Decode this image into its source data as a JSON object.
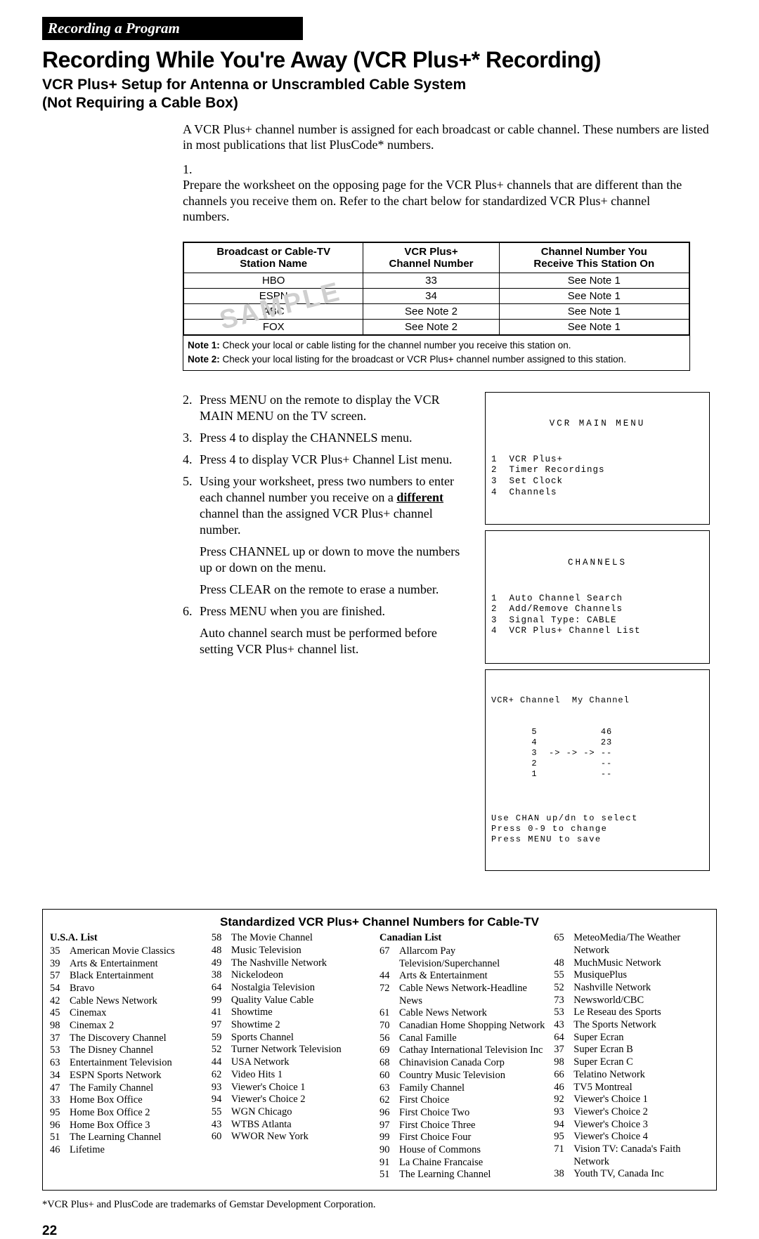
{
  "header_bar": "Recording a Program",
  "main_title": "Recording While You're Away (VCR Plus+* Recording)",
  "sub_title_line1": "VCR Plus+ Setup for Antenna or Unscrambled Cable System",
  "sub_title_line2": "(Not Requiring a Cable Box)",
  "intro_para": "A VCR Plus+ channel number is assigned for each broadcast or cable channel. These numbers are listed in most publications that list PlusCode* numbers.",
  "step1_num": "1.",
  "step1_text": "Prepare the worksheet on the opposing page for the VCR Plus+ channels that are different than the channels you receive them on.  Refer to the chart below for standardized VCR Plus+ channel numbers.",
  "sample_watermark": "SAMPLE",
  "sample_table": {
    "headers": [
      "Broadcast or Cable-TV\nStation Name",
      "VCR Plus+\nChannel Number",
      "Channel Number You\nReceive This Station On"
    ],
    "rows": [
      [
        "HBO",
        "33",
        "See Note 1"
      ],
      [
        "ESPN",
        "34",
        "See Note 1"
      ],
      [
        "ABC",
        "See Note 2",
        "See Note 1"
      ],
      [
        "FOX",
        "See Note 2",
        "See Note 1"
      ]
    ],
    "note1_label": "Note 1:",
    "note1": " Check your local or cable listing for the channel number you receive this station on.",
    "note2_label": "Note 2:",
    "note2": " Check your local listing for the broadcast or VCR Plus+ channel number assigned to this station."
  },
  "steps": {
    "s2n": "2.",
    "s2": "Press MENU on the remote to display the VCR MAIN MENU on the TV screen.",
    "s3n": "3.",
    "s3": "Press 4 to display the CHANNELS menu.",
    "s4n": "4.",
    "s4": "Press 4 to display VCR Plus+ Channel List menu.",
    "s5n": "5.",
    "s5a": "Using your worksheet, press two numbers to enter each channel number you receive on a ",
    "s5u": "different",
    "s5b": " channel than the assigned VCR Plus+ channel number.",
    "s5c": "Press CHANNEL up or down to move the numbers up or down on the menu.",
    "s5d": "Press CLEAR on the remote to erase a number.",
    "s6n": "6.",
    "s6a": "Press MENU when you are finished.",
    "s6b": "Auto channel search must be performed before setting VCR Plus+ channel list."
  },
  "screen1": {
    "title": "VCR MAIN MENU",
    "items": [
      "1  VCR Plus+",
      "2  Timer Recordings",
      "3  Set Clock",
      "4  Channels"
    ]
  },
  "screen2": {
    "title": "CHANNELS",
    "items": [
      "1  Auto Channel Search",
      "2  Add/Remove Channels",
      "3  Signal Type: CABLE",
      "4  VCR Plus+ Channel List"
    ]
  },
  "screen3": {
    "header": "VCR+ Channel  My Channel",
    "rows": [
      "       5           46",
      "       4           23",
      "       3  -> -> -> --",
      "       2           --",
      "       1           --"
    ],
    "foot": [
      "Use CHAN up/dn to select",
      "Press 0-9 to change",
      "Press MENU to save"
    ]
  },
  "clist_title": "Standardized VCR Plus+ Channel Numbers for Cable-TV",
  "usa_head": "U.S.A. List",
  "canada_head": "Canadian List",
  "usa_a": [
    {
      "n": "35",
      "t": "American Movie Classics"
    },
    {
      "n": "39",
      "t": "Arts & Entertainment"
    },
    {
      "n": "57",
      "t": "Black Entertainment"
    },
    {
      "n": "54",
      "t": "Bravo"
    },
    {
      "n": "42",
      "t": "Cable News Network"
    },
    {
      "n": "45",
      "t": "Cinemax"
    },
    {
      "n": "98",
      "t": "Cinemax 2"
    },
    {
      "n": "37",
      "t": "The Discovery Channel"
    },
    {
      "n": "53",
      "t": "The Disney Channel"
    },
    {
      "n": "63",
      "t": "Entertainment Television"
    },
    {
      "n": "34",
      "t": "ESPN Sports Network"
    },
    {
      "n": "47",
      "t": "The Family Channel"
    },
    {
      "n": "33",
      "t": "Home Box Office"
    },
    {
      "n": "95",
      "t": "Home Box Office 2"
    },
    {
      "n": "96",
      "t": "Home Box Office 3"
    },
    {
      "n": "51",
      "t": "The Learning Channel"
    },
    {
      "n": "46",
      "t": "Lifetime"
    }
  ],
  "usa_b": [
    {
      "n": "58",
      "t": "The Movie Channel"
    },
    {
      "n": "48",
      "t": "Music Television"
    },
    {
      "n": "49",
      "t": "The Nashville Network"
    },
    {
      "n": "38",
      "t": "Nickelodeon"
    },
    {
      "n": "64",
      "t": "Nostalgia Television"
    },
    {
      "n": "99",
      "t": "Quality Value Cable"
    },
    {
      "n": "41",
      "t": "Showtime"
    },
    {
      "n": "97",
      "t": "Showtime 2"
    },
    {
      "n": "59",
      "t": "Sports Channel"
    },
    {
      "n": "52",
      "t": "Turner Network Television"
    },
    {
      "n": "44",
      "t": "USA Network"
    },
    {
      "n": "62",
      "t": "Video Hits 1"
    },
    {
      "n": "93",
      "t": "Viewer's Choice 1"
    },
    {
      "n": "94",
      "t": "Viewer's Choice 2"
    },
    {
      "n": "55",
      "t": "WGN Chicago"
    },
    {
      "n": "43",
      "t": "WTBS Atlanta"
    },
    {
      "n": "60",
      "t": "WWOR New York"
    }
  ],
  "can_a": [
    {
      "n": "67",
      "t": "Allarcom Pay Television/Superchannel"
    },
    {
      "n": "44",
      "t": "Arts & Entertainment"
    },
    {
      "n": "72",
      "t": "Cable News Network-Headline News"
    },
    {
      "n": "61",
      "t": "Cable News Network"
    },
    {
      "n": "70",
      "t": "Canadian Home Shopping Network"
    },
    {
      "n": "56",
      "t": "Canal Famille"
    },
    {
      "n": "69",
      "t": "Cathay International Television Inc"
    },
    {
      "n": "68",
      "t": "Chinavision Canada Corp"
    },
    {
      "n": "60",
      "t": "Country Music Television"
    },
    {
      "n": "63",
      "t": "Family Channel"
    },
    {
      "n": "62",
      "t": "First Choice"
    },
    {
      "n": "96",
      "t": "First Choice Two"
    },
    {
      "n": "97",
      "t": "First Choice Three"
    },
    {
      "n": "99",
      "t": "First Choice Four"
    },
    {
      "n": "90",
      "t": "House of Commons"
    },
    {
      "n": "91",
      "t": "La Chaine Francaise"
    },
    {
      "n": "51",
      "t": "The Learning Channel"
    }
  ],
  "can_b": [
    {
      "n": "65",
      "t": "MeteoMedia/The Weather Network"
    },
    {
      "n": "48",
      "t": "MuchMusic Network"
    },
    {
      "n": "55",
      "t": "MusiquePlus"
    },
    {
      "n": "52",
      "t": "Nashville Network"
    },
    {
      "n": "73",
      "t": "Newsworld/CBC"
    },
    {
      "n": "53",
      "t": "Le Reseau des Sports"
    },
    {
      "n": "43",
      "t": "The Sports Network"
    },
    {
      "n": "64",
      "t": "Super Ecran"
    },
    {
      "n": "37",
      "t": "Super Ecran B"
    },
    {
      "n": "98",
      "t": "Super Ecran C"
    },
    {
      "n": "66",
      "t": "Telatino Network"
    },
    {
      "n": "46",
      "t": "TV5 Montreal"
    },
    {
      "n": "92",
      "t": "Viewer's Choice 1"
    },
    {
      "n": "93",
      "t": "Viewer's Choice 2"
    },
    {
      "n": "94",
      "t": "Viewer's Choice 3"
    },
    {
      "n": "95",
      "t": "Viewer's Choice 4"
    },
    {
      "n": "71",
      "t": "Vision TV: Canada's Faith Network"
    },
    {
      "n": "38",
      "t": "Youth TV, Canada Inc"
    }
  ],
  "footnote": "*VCR Plus+ and PlusCode are trademarks of Gemstar Development Corporation.",
  "page_number": "22"
}
